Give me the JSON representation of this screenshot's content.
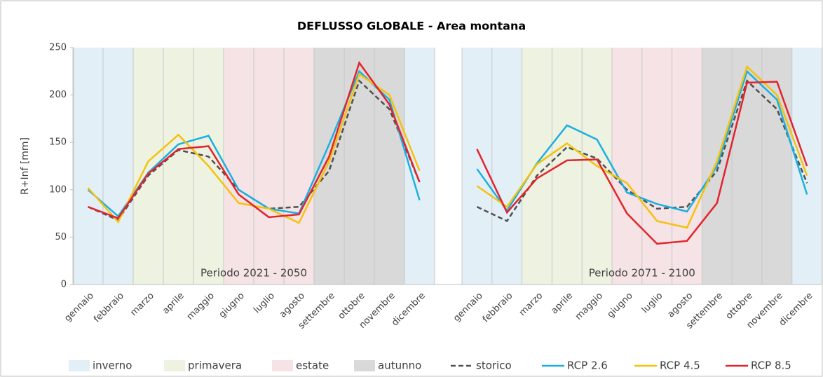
{
  "chart_data": {
    "type": "line",
    "title": "DEFLUSSO GLOBALE - Area montana",
    "ylabel": "R+Inf [mm]",
    "ylim": [
      0,
      250
    ],
    "yticks": [
      0,
      50,
      100,
      150,
      200,
      250
    ],
    "grid": true,
    "categories": [
      "gennaio",
      "febbraio",
      "marzo",
      "aprile",
      "maggio",
      "giugno",
      "luglio",
      "agosto",
      "settembre",
      "ottobre",
      "novembre",
      "dicembre"
    ],
    "seasons": [
      {
        "name": "inverno",
        "color": "#e3eff7",
        "months": [
          0,
          1,
          11
        ]
      },
      {
        "name": "primavera",
        "color": "#eef2e1",
        "months": [
          2,
          3,
          4
        ]
      },
      {
        "name": "estate",
        "color": "#f5e3e5",
        "months": [
          5,
          6,
          7
        ]
      },
      {
        "name": "autunno",
        "color": "#d9d9d9",
        "months": [
          8,
          9,
          10
        ]
      }
    ],
    "panels": [
      {
        "label": "Periodo 2021 - 2050",
        "series": [
          {
            "name": "storico",
            "color": "#505050",
            "dashed": true,
            "values": [
              82,
              68,
              115,
              142,
              135,
              100,
              80,
              82,
              120,
              215,
              185,
              108
            ]
          },
          {
            "name": "RCP 2.6",
            "color": "#1cb0e0",
            "values": [
              100,
              72,
              118,
              148,
              157,
              100,
              80,
              75,
              148,
              225,
              195,
              89
            ]
          },
          {
            "name": "RCP 4.5",
            "color": "#f4c20d",
            "values": [
              102,
              66,
              130,
              158,
              125,
              86,
              80,
              65,
              130,
              222,
              200,
              120
            ]
          },
          {
            "name": "RCP 8.5",
            "color": "#e3232c",
            "values": [
              82,
              70,
              117,
              143,
              146,
              95,
              71,
              74,
              135,
              234,
              190,
              108
            ]
          }
        ]
      },
      {
        "label": "Periodo 2071 - 2100",
        "series": [
          {
            "name": "storico",
            "color": "#505050",
            "dashed": true,
            "values": [
              82,
              67,
              115,
              145,
              133,
              100,
              80,
              82,
              120,
              215,
              185,
              107
            ]
          },
          {
            "name": "RCP 2.6",
            "color": "#1cb0e0",
            "values": [
              122,
              78,
              128,
              168,
              153,
              97,
              85,
              77,
              125,
              225,
              195,
              95
            ]
          },
          {
            "name": "RCP 4.5",
            "color": "#f4c20d",
            "values": [
              104,
              82,
              127,
              149,
              125,
              107,
              67,
              60,
              130,
              230,
              200,
              115
            ]
          },
          {
            "name": "RCP 8.5",
            "color": "#e3232c",
            "values": [
              143,
              76,
              112,
              131,
              132,
              75,
              43,
              46,
              86,
              213,
              214,
              125
            ]
          }
        ]
      }
    ]
  }
}
